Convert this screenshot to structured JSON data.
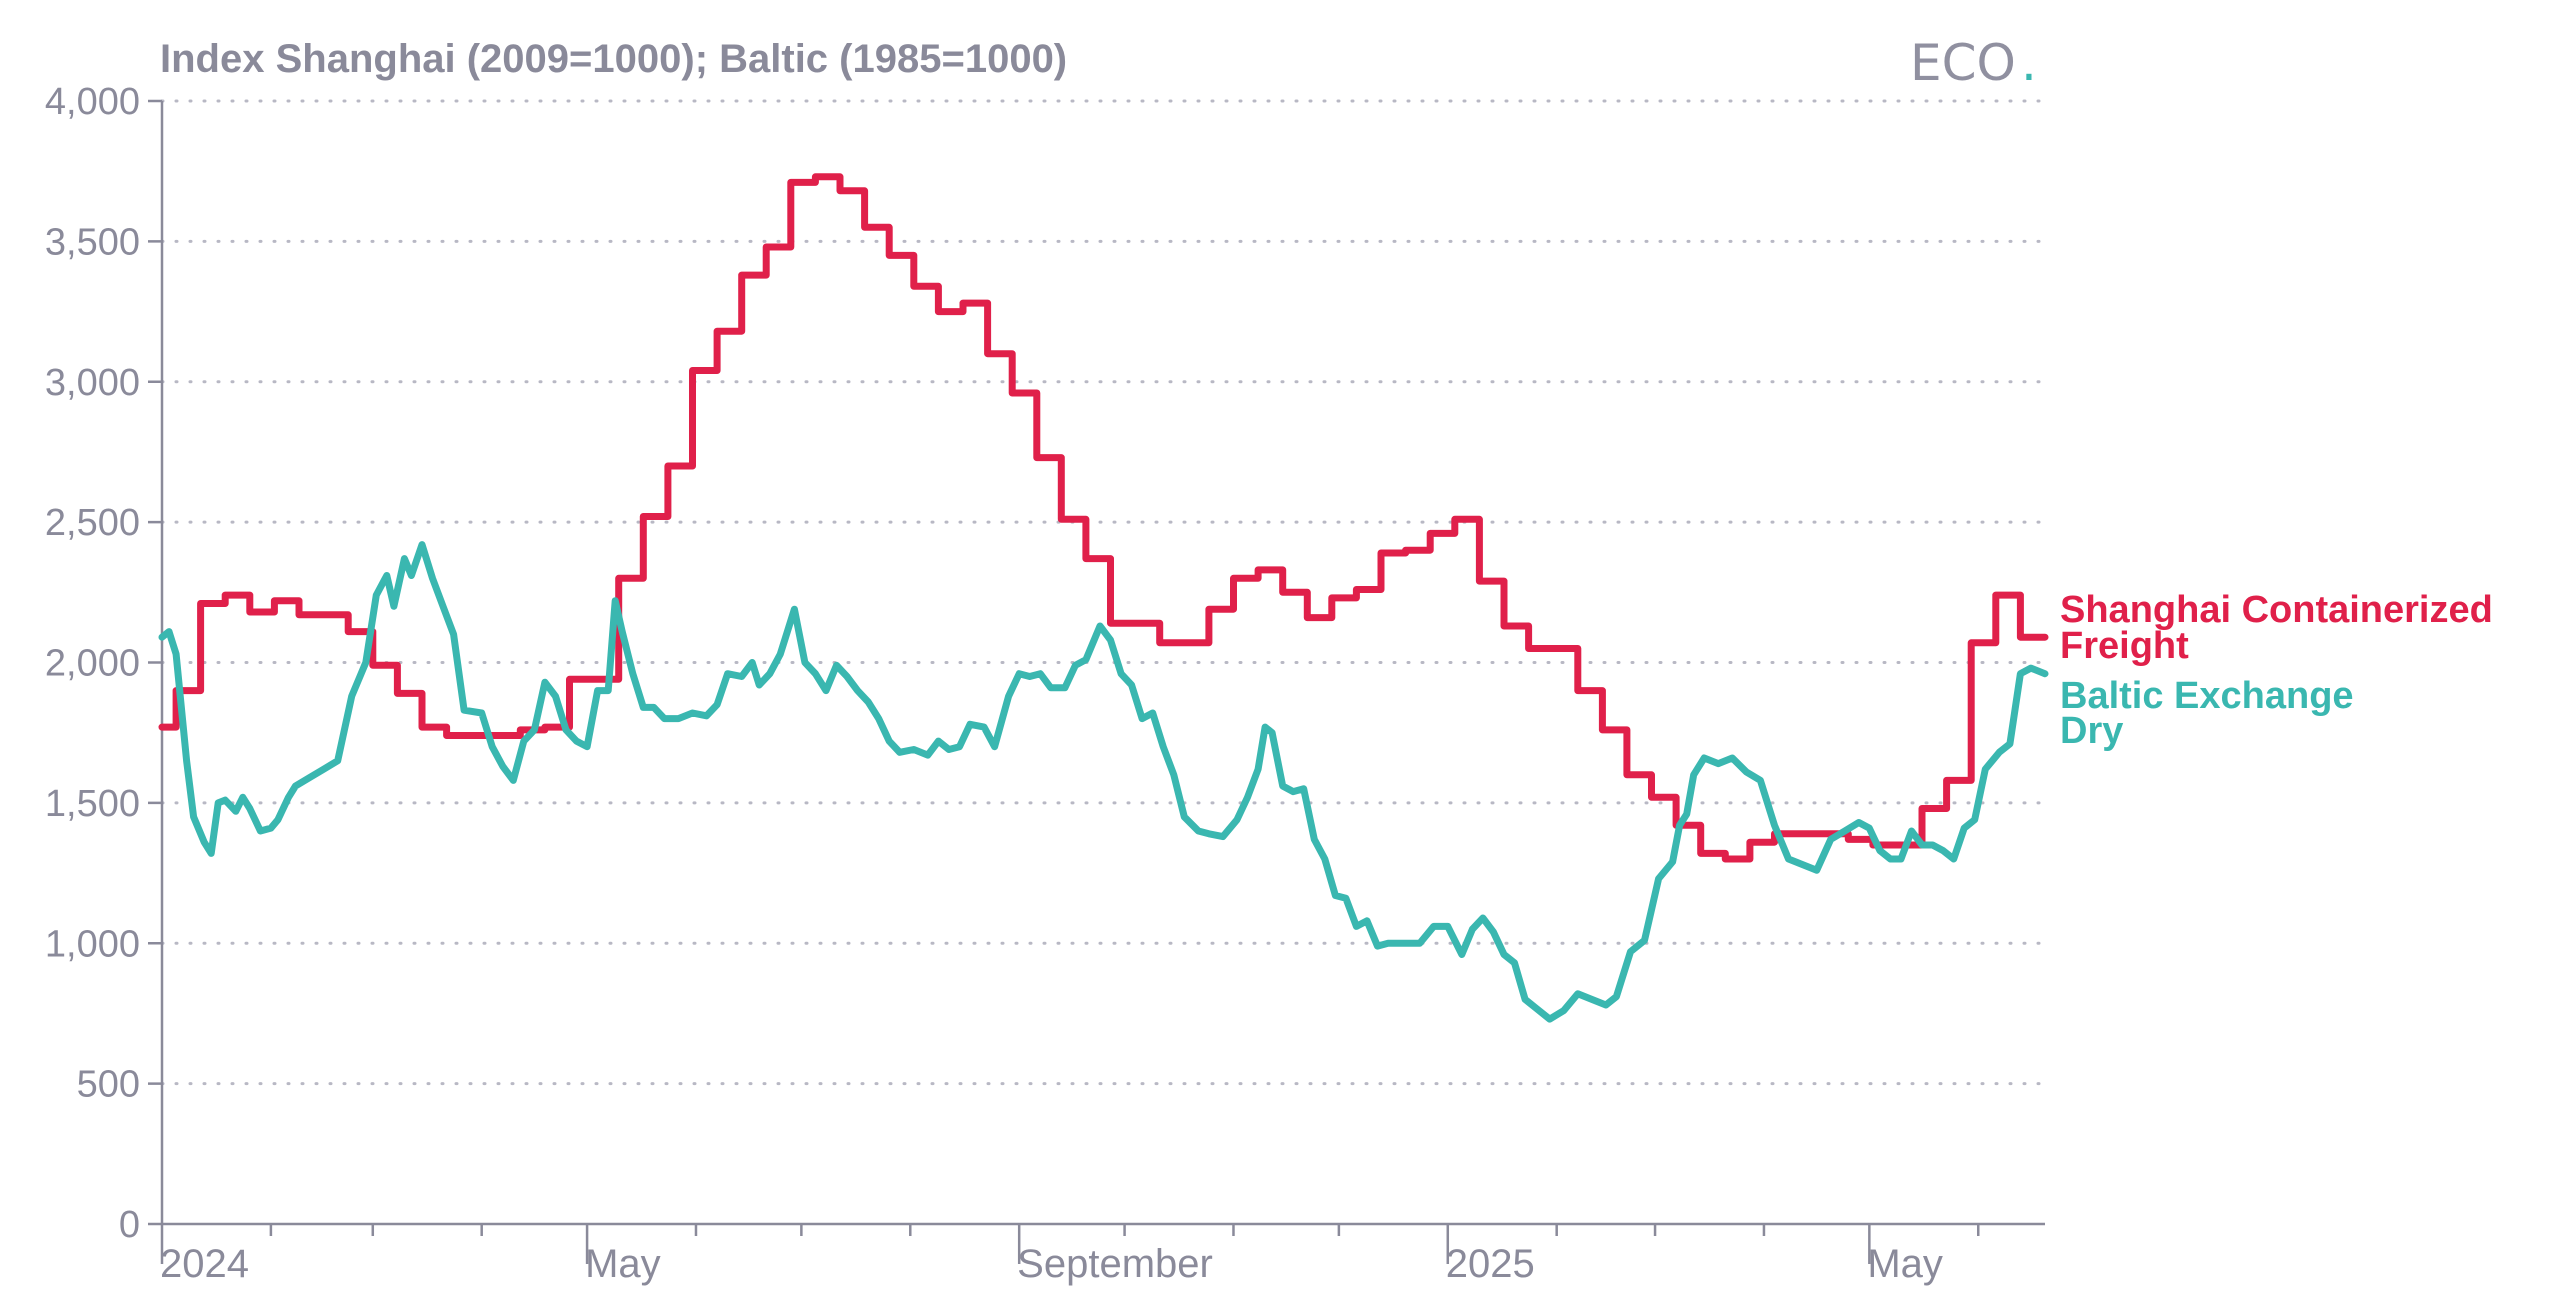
{
  "header": {
    "subtitle": "Index Shanghai (2009=1000); Baltic (1985=1000)",
    "brand": "ECO",
    "brand_dot": "."
  },
  "colors": {
    "shanghai": "#e0204a",
    "baltic": "#3ab7b0",
    "axis_text": "#8a8a9a",
    "grid": "#b8b8c4"
  },
  "chart_data": {
    "type": "line",
    "title": "",
    "ylabel": "Index Shanghai (2009=1000); Baltic (1985=1000)",
    "xlabel": "",
    "ylim": [
      0,
      4000
    ],
    "xlim": [
      "2024-01-01",
      "2025-06-20"
    ],
    "yticks": [
      0,
      500,
      1000,
      1500,
      2000,
      2500,
      3000,
      3500,
      4000
    ],
    "ytick_labels": [
      "0",
      "500",
      "1,000",
      "1,500",
      "2,000",
      "2,500",
      "3,000",
      "3,500",
      "4,000"
    ],
    "xtick_labels": [
      {
        "date": "2024-01-01",
        "label": "2024"
      },
      {
        "date": "2024-05-01",
        "label": "May"
      },
      {
        "date": "2024-09-01",
        "label": "September"
      },
      {
        "date": "2025-01-01",
        "label": "2025"
      },
      {
        "date": "2025-05-01",
        "label": "May"
      }
    ],
    "month_ticks": [
      "2024-01-01",
      "2024-02-01",
      "2024-03-01",
      "2024-04-01",
      "2024-05-01",
      "2024-06-01",
      "2024-07-01",
      "2024-08-01",
      "2024-09-01",
      "2024-10-01",
      "2024-11-01",
      "2024-12-01",
      "2025-01-01",
      "2025-02-01",
      "2025-03-01",
      "2025-04-01",
      "2025-05-01",
      "2025-06-01"
    ],
    "grid": "horizontal-dotted",
    "legend": "right-end-labels",
    "series": [
      {
        "name": "Shanghai Containerized Freight",
        "label_lines": [
          "Shanghai Containerized",
          "Freight"
        ],
        "color": "#e0204a",
        "step": true,
        "points": [
          [
            "2024-01-01",
            1770
          ],
          [
            "2024-01-05",
            1900
          ],
          [
            "2024-01-12",
            2210
          ],
          [
            "2024-01-19",
            2240
          ],
          [
            "2024-01-26",
            2180
          ],
          [
            "2024-02-02",
            2220
          ],
          [
            "2024-02-09",
            2170
          ],
          [
            "2024-02-23",
            2110
          ],
          [
            "2024-03-01",
            1990
          ],
          [
            "2024-03-08",
            1890
          ],
          [
            "2024-03-15",
            1770
          ],
          [
            "2024-03-22",
            1740
          ],
          [
            "2024-04-05",
            1740
          ],
          [
            "2024-04-12",
            1760
          ],
          [
            "2024-04-19",
            1770
          ],
          [
            "2024-04-26",
            1940
          ],
          [
            "2024-05-03",
            1940
          ],
          [
            "2024-05-10",
            2300
          ],
          [
            "2024-05-17",
            2520
          ],
          [
            "2024-05-24",
            2700
          ],
          [
            "2024-05-31",
            3040
          ],
          [
            "2024-06-07",
            3180
          ],
          [
            "2024-06-14",
            3380
          ],
          [
            "2024-06-21",
            3480
          ],
          [
            "2024-06-28",
            3710
          ],
          [
            "2024-07-05",
            3730
          ],
          [
            "2024-07-12",
            3680
          ],
          [
            "2024-07-19",
            3550
          ],
          [
            "2024-07-26",
            3450
          ],
          [
            "2024-08-02",
            3340
          ],
          [
            "2024-08-09",
            3250
          ],
          [
            "2024-08-16",
            3280
          ],
          [
            "2024-08-23",
            3100
          ],
          [
            "2024-08-30",
            2960
          ],
          [
            "2024-09-06",
            2730
          ],
          [
            "2024-09-13",
            2510
          ],
          [
            "2024-09-20",
            2370
          ],
          [
            "2024-09-27",
            2140
          ],
          [
            "2024-10-11",
            2070
          ],
          [
            "2024-10-25",
            2190
          ],
          [
            "2024-11-01",
            2300
          ],
          [
            "2024-11-08",
            2330
          ],
          [
            "2024-11-15",
            2250
          ],
          [
            "2024-11-22",
            2160
          ],
          [
            "2024-11-29",
            2230
          ],
          [
            "2024-12-06",
            2260
          ],
          [
            "2024-12-13",
            2390
          ],
          [
            "2024-12-20",
            2400
          ],
          [
            "2024-12-27",
            2460
          ],
          [
            "2025-01-03",
            2510
          ],
          [
            "2025-01-10",
            2290
          ],
          [
            "2025-01-17",
            2130
          ],
          [
            "2025-01-24",
            2050
          ],
          [
            "2025-02-07",
            1900
          ],
          [
            "2025-02-14",
            1760
          ],
          [
            "2025-02-21",
            1600
          ],
          [
            "2025-02-28",
            1520
          ],
          [
            "2025-03-07",
            1420
          ],
          [
            "2025-03-14",
            1320
          ],
          [
            "2025-03-21",
            1300
          ],
          [
            "2025-03-28",
            1360
          ],
          [
            "2025-04-04",
            1390
          ],
          [
            "2025-04-11",
            1390
          ],
          [
            "2025-04-18",
            1390
          ],
          [
            "2025-04-25",
            1370
          ],
          [
            "2025-05-02",
            1350
          ],
          [
            "2025-05-09",
            1350
          ],
          [
            "2025-05-16",
            1480
          ],
          [
            "2025-05-23",
            1580
          ],
          [
            "2025-05-30",
            2070
          ],
          [
            "2025-06-06",
            2240
          ],
          [
            "2025-06-13",
            2090
          ],
          [
            "2025-06-20",
            2090
          ]
        ]
      },
      {
        "name": "Baltic Exchange Dry",
        "label_lines": [
          "Baltic Exchange",
          "Dry"
        ],
        "color": "#3ab7b0",
        "step": false,
        "points": [
          [
            "2024-01-01",
            2090
          ],
          [
            "2024-01-03",
            2110
          ],
          [
            "2024-01-05",
            2030
          ],
          [
            "2024-01-08",
            1650
          ],
          [
            "2024-01-10",
            1450
          ],
          [
            "2024-01-13",
            1360
          ],
          [
            "2024-01-15",
            1320
          ],
          [
            "2024-01-17",
            1500
          ],
          [
            "2024-01-19",
            1510
          ],
          [
            "2024-01-22",
            1470
          ],
          [
            "2024-01-24",
            1520
          ],
          [
            "2024-01-26",
            1480
          ],
          [
            "2024-01-29",
            1400
          ],
          [
            "2024-02-01",
            1410
          ],
          [
            "2024-02-03",
            1440
          ],
          [
            "2024-02-06",
            1520
          ],
          [
            "2024-02-08",
            1560
          ],
          [
            "2024-02-12",
            1590
          ],
          [
            "2024-02-16",
            1620
          ],
          [
            "2024-02-20",
            1650
          ],
          [
            "2024-02-24",
            1880
          ],
          [
            "2024-02-28",
            2000
          ],
          [
            "2024-03-02",
            2240
          ],
          [
            "2024-03-05",
            2310
          ],
          [
            "2024-03-07",
            2200
          ],
          [
            "2024-03-10",
            2370
          ],
          [
            "2024-03-12",
            2310
          ],
          [
            "2024-03-15",
            2420
          ],
          [
            "2024-03-18",
            2300
          ],
          [
            "2024-03-21",
            2200
          ],
          [
            "2024-03-24",
            2100
          ],
          [
            "2024-03-27",
            1830
          ],
          [
            "2024-04-01",
            1820
          ],
          [
            "2024-04-04",
            1700
          ],
          [
            "2024-04-07",
            1630
          ],
          [
            "2024-04-10",
            1580
          ],
          [
            "2024-04-13",
            1720
          ],
          [
            "2024-04-16",
            1760
          ],
          [
            "2024-04-19",
            1930
          ],
          [
            "2024-04-22",
            1880
          ],
          [
            "2024-04-25",
            1760
          ],
          [
            "2024-04-28",
            1720
          ],
          [
            "2024-05-01",
            1700
          ],
          [
            "2024-05-04",
            1900
          ],
          [
            "2024-05-07",
            1900
          ],
          [
            "2024-05-09",
            2220
          ],
          [
            "2024-05-11",
            2110
          ],
          [
            "2024-05-14",
            1960
          ],
          [
            "2024-05-17",
            1840
          ],
          [
            "2024-05-20",
            1840
          ],
          [
            "2024-05-23",
            1800
          ],
          [
            "2024-05-27",
            1800
          ],
          [
            "2024-05-31",
            1820
          ],
          [
            "2024-06-04",
            1810
          ],
          [
            "2024-06-07",
            1850
          ],
          [
            "2024-06-10",
            1960
          ],
          [
            "2024-06-14",
            1950
          ],
          [
            "2024-06-17",
            2000
          ],
          [
            "2024-06-19",
            1920
          ],
          [
            "2024-06-22",
            1960
          ],
          [
            "2024-06-25",
            2030
          ],
          [
            "2024-06-29",
            2190
          ],
          [
            "2024-07-02",
            2000
          ],
          [
            "2024-07-05",
            1960
          ],
          [
            "2024-07-08",
            1900
          ],
          [
            "2024-07-11",
            1990
          ],
          [
            "2024-07-14",
            1950
          ],
          [
            "2024-07-17",
            1900
          ],
          [
            "2024-07-20",
            1860
          ],
          [
            "2024-07-23",
            1800
          ],
          [
            "2024-07-26",
            1720
          ],
          [
            "2024-07-29",
            1680
          ],
          [
            "2024-08-02",
            1690
          ],
          [
            "2024-08-06",
            1670
          ],
          [
            "2024-08-09",
            1720
          ],
          [
            "2024-08-12",
            1690
          ],
          [
            "2024-08-15",
            1700
          ],
          [
            "2024-08-18",
            1780
          ],
          [
            "2024-08-22",
            1770
          ],
          [
            "2024-08-25",
            1700
          ],
          [
            "2024-08-29",
            1880
          ],
          [
            "2024-09-01",
            1960
          ],
          [
            "2024-09-04",
            1950
          ],
          [
            "2024-09-07",
            1960
          ],
          [
            "2024-09-10",
            1910
          ],
          [
            "2024-09-14",
            1910
          ],
          [
            "2024-09-17",
            1990
          ],
          [
            "2024-09-20",
            2010
          ],
          [
            "2024-09-24",
            2130
          ],
          [
            "2024-09-27",
            2080
          ],
          [
            "2024-09-30",
            1960
          ],
          [
            "2024-10-03",
            1920
          ],
          [
            "2024-10-06",
            1800
          ],
          [
            "2024-10-09",
            1820
          ],
          [
            "2024-10-12",
            1700
          ],
          [
            "2024-10-15",
            1600
          ],
          [
            "2024-10-18",
            1450
          ],
          [
            "2024-10-22",
            1400
          ],
          [
            "2024-10-25",
            1390
          ],
          [
            "2024-10-29",
            1380
          ],
          [
            "2024-11-02",
            1440
          ],
          [
            "2024-11-05",
            1520
          ],
          [
            "2024-11-08",
            1620
          ],
          [
            "2024-11-10",
            1770
          ],
          [
            "2024-11-12",
            1750
          ],
          [
            "2024-11-15",
            1560
          ],
          [
            "2024-11-18",
            1540
          ],
          [
            "2024-11-21",
            1550
          ],
          [
            "2024-11-24",
            1370
          ],
          [
            "2024-11-27",
            1300
          ],
          [
            "2024-11-30",
            1170
          ],
          [
            "2024-12-03",
            1160
          ],
          [
            "2024-12-06",
            1060
          ],
          [
            "2024-12-09",
            1080
          ],
          [
            "2024-12-12",
            990
          ],
          [
            "2024-12-15",
            1000
          ],
          [
            "2024-12-20",
            1000
          ],
          [
            "2024-12-24",
            1000
          ],
          [
            "2024-12-28",
            1060
          ],
          [
            "2025-01-01",
            1060
          ],
          [
            "2025-01-05",
            960
          ],
          [
            "2025-01-08",
            1050
          ],
          [
            "2025-01-11",
            1090
          ],
          [
            "2025-01-14",
            1040
          ],
          [
            "2025-01-17",
            960
          ],
          [
            "2025-01-20",
            930
          ],
          [
            "2025-01-23",
            800
          ],
          [
            "2025-01-26",
            770
          ],
          [
            "2025-01-30",
            730
          ],
          [
            "2025-02-03",
            760
          ],
          [
            "2025-02-07",
            820
          ],
          [
            "2025-02-11",
            800
          ],
          [
            "2025-02-15",
            780
          ],
          [
            "2025-02-18",
            810
          ],
          [
            "2025-02-22",
            970
          ],
          [
            "2025-02-26",
            1010
          ],
          [
            "2025-03-02",
            1230
          ],
          [
            "2025-03-06",
            1290
          ],
          [
            "2025-03-08",
            1420
          ],
          [
            "2025-03-10",
            1460
          ],
          [
            "2025-03-12",
            1600
          ],
          [
            "2025-03-15",
            1660
          ],
          [
            "2025-03-19",
            1640
          ],
          [
            "2025-03-23",
            1660
          ],
          [
            "2025-03-27",
            1610
          ],
          [
            "2025-03-31",
            1580
          ],
          [
            "2025-04-04",
            1420
          ],
          [
            "2025-04-08",
            1300
          ],
          [
            "2025-04-12",
            1280
          ],
          [
            "2025-04-16",
            1260
          ],
          [
            "2025-04-20",
            1370
          ],
          [
            "2025-04-24",
            1400
          ],
          [
            "2025-04-28",
            1430
          ],
          [
            "2025-05-01",
            1410
          ],
          [
            "2025-05-04",
            1330
          ],
          [
            "2025-05-07",
            1300
          ],
          [
            "2025-05-10",
            1300
          ],
          [
            "2025-05-13",
            1400
          ],
          [
            "2025-05-16",
            1350
          ],
          [
            "2025-05-19",
            1350
          ],
          [
            "2025-05-22",
            1330
          ],
          [
            "2025-05-25",
            1300
          ],
          [
            "2025-05-28",
            1410
          ],
          [
            "2025-05-31",
            1440
          ],
          [
            "2025-06-03",
            1620
          ],
          [
            "2025-06-07",
            1680
          ],
          [
            "2025-06-10",
            1710
          ],
          [
            "2025-06-13",
            1960
          ],
          [
            "2025-06-16",
            1980
          ],
          [
            "2025-06-20",
            1960
          ]
        ]
      }
    ]
  }
}
